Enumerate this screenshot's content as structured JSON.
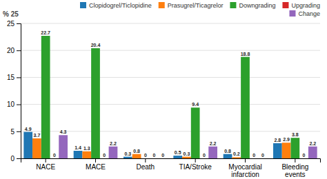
{
  "chart_data": {
    "type": "bar",
    "ylabel": "% 25",
    "categories": [
      "NACE",
      "MACE",
      "Death",
      "TIA/Stroke",
      "Myocardial\ninfarction",
      "Bleeding\nevents"
    ],
    "series": [
      {
        "name": "Clopidogrel/Ticlopidine",
        "values": [
          4.9,
          1.4,
          0.3,
          0.5,
          0.8,
          2.8
        ]
      },
      {
        "name": "Prasugrel/Ticagrelor",
        "values": [
          3.7,
          1.3,
          0.8,
          0.3,
          0.2,
          2.9
        ]
      },
      {
        "name": "Downgrading",
        "values": [
          22.7,
          20.4,
          0,
          9.4,
          18.8,
          3.8
        ]
      },
      {
        "name": "Upgrading",
        "values": [
          0,
          0,
          0,
          0,
          0,
          0
        ]
      },
      {
        "name": "Change",
        "values": [
          4.3,
          2.2,
          0,
          2.2,
          0,
          2.2
        ]
      }
    ],
    "ylim": [
      0,
      25
    ],
    "yticks": [
      0,
      5,
      10,
      15,
      20,
      25
    ],
    "grid": true,
    "legend": "upper right",
    "data_labels": true
  }
}
